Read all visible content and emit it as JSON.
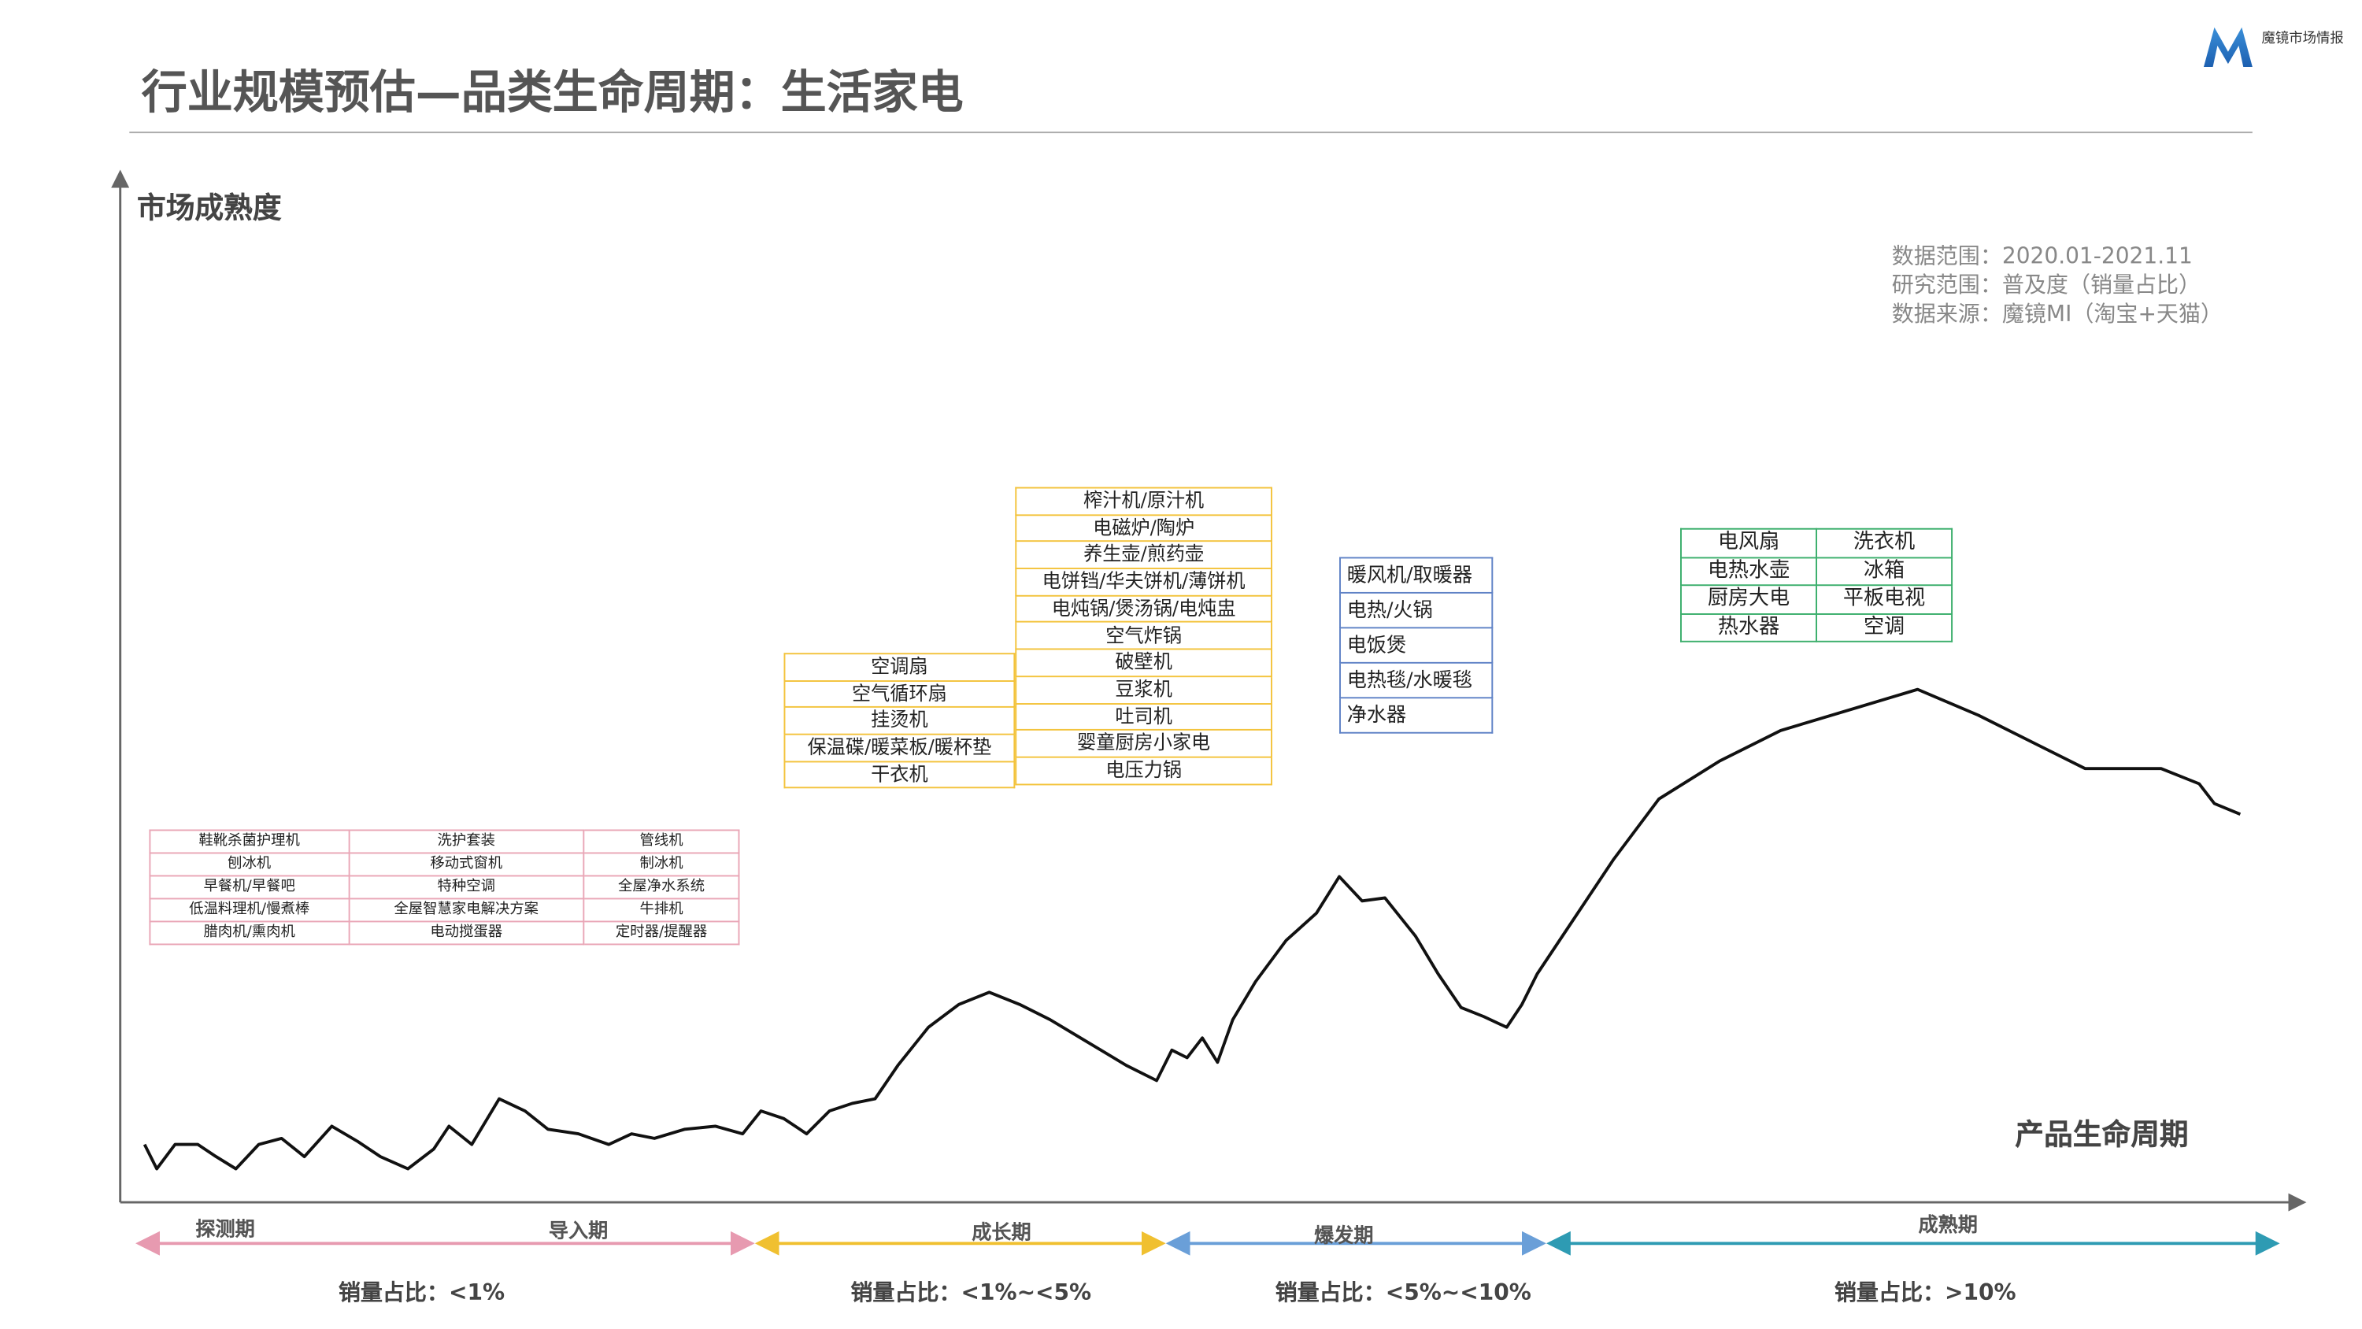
{
  "header": {
    "title": "行业规模预估—品类生命周期：生活家电",
    "logo": "魔镜市场情报"
  },
  "y_axis_label": "市场成熟度",
  "x_axis_label": "产品生命周期",
  "notes": [
    "数据范围：2020.01-2021.11",
    "研究范围：普及度（销量占比）",
    "数据来源：魔镜MI（淘宝+天猫）"
  ],
  "tables": {
    "pink": [
      [
        "鞋靴杀菌护理机",
        "洗护套装",
        "管线机"
      ],
      [
        "刨冰机",
        "移动式窗机",
        "制冰机"
      ],
      [
        "早餐机/早餐吧",
        "特种空调",
        "全屋净水系统"
      ],
      [
        "低温料理机/慢煮棒",
        "全屋智慧家电解决方案",
        "牛排机"
      ],
      [
        "腊肉机/熏肉机",
        "电动搅蛋器",
        "定时器/提醒器"
      ]
    ],
    "yellow_left": [
      "空调扇",
      "空气循环扇",
      "挂烫机",
      "保温碟/暖菜板/暖杯垫",
      "干衣机"
    ],
    "yellow_right": [
      "榨汁机/原汁机",
      "电磁炉/陶炉",
      "养生壶/煎药壶",
      "电饼铛/华夫饼机/薄饼机",
      "电炖锅/煲汤锅/电炖盅",
      "空气炸锅",
      "破壁机",
      "豆浆机",
      "吐司机",
      "婴童厨房小家电",
      "电压力锅"
    ],
    "blue": [
      "暖风机/取暖器",
      "电热/火锅",
      "电饭煲",
      "电热毯/水暖毯",
      "净水器"
    ],
    "green": [
      [
        "电风扇",
        "洗衣机"
      ],
      [
        "电热水壶",
        "冰箱"
      ],
      [
        "厨房大电",
        "平板电视"
      ],
      [
        "热水器",
        "空调"
      ]
    ]
  },
  "phases": [
    "探测期",
    "导入期",
    "成长期",
    "爆发期",
    "成熟期"
  ],
  "ratios": [
    "销量占比：<1%",
    "销量占比：<1%~<5%",
    "销量占比：<5%~<10%",
    "销量占比：>10%"
  ]
}
